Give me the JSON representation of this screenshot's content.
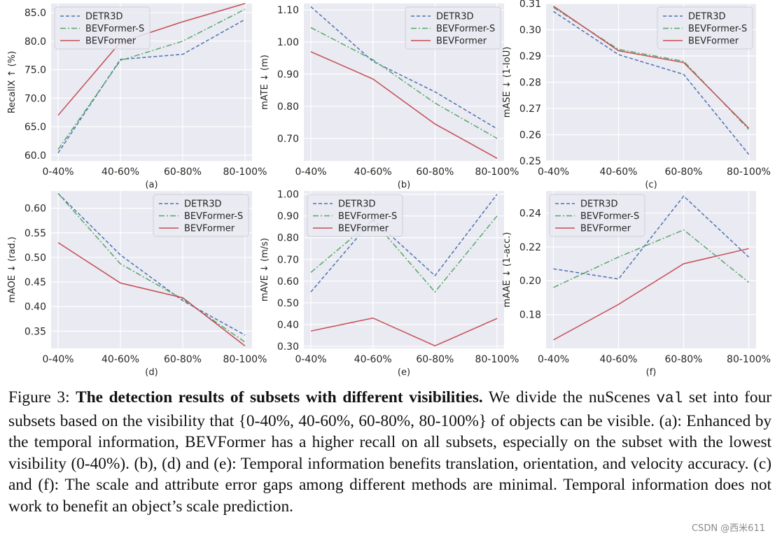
{
  "colors": {
    "DETR3D": "#4c72b0",
    "BEVFormer-S": "#55a868",
    "BEVFormer": "#c44e52",
    "plot_bg": "#eaeaf2",
    "grid": "#ffffff"
  },
  "chart_data": [
    {
      "type": "line",
      "label": "(a)",
      "ylabel": "RecallX ↑ (%)",
      "categories": [
        "0-40%",
        "40-60%",
        "60-80%",
        "80-100%"
      ],
      "ylim": [
        59.0,
        86.6
      ],
      "yticks": [
        60.0,
        65.0,
        70.0,
        75.0,
        80.0,
        85.0
      ],
      "ytick_labels": [
        "60.0",
        "65.0",
        "70.0",
        "75.0",
        "80.0",
        "85.0"
      ],
      "legend": "top-left",
      "series": [
        {
          "name": "DETR3D",
          "values": [
            60.4,
            76.8,
            77.7,
            83.8
          ]
        },
        {
          "name": "BEVFormer-S",
          "values": [
            61.0,
            76.6,
            80.0,
            85.6
          ]
        },
        {
          "name": "BEVFormer",
          "values": [
            67.0,
            79.8,
            83.4,
            86.6
          ]
        }
      ]
    },
    {
      "type": "line",
      "label": "(b)",
      "ylabel": "mATE ↓ (m)",
      "categories": [
        "0-40%",
        "40-60%",
        "60-80%",
        "80-100%"
      ],
      "ylim": [
        0.63,
        1.12
      ],
      "yticks": [
        0.7,
        0.8,
        0.9,
        1.0,
        1.1
      ],
      "ytick_labels": [
        "0.70",
        "0.80",
        "0.90",
        "1.00",
        "1.10"
      ],
      "legend": "top-right",
      "series": [
        {
          "name": "DETR3D",
          "values": [
            1.11,
            0.94,
            0.845,
            0.73
          ]
        },
        {
          "name": "BEVFormer-S",
          "values": [
            1.045,
            0.945,
            0.81,
            0.7
          ]
        },
        {
          "name": "BEVFormer",
          "values": [
            0.97,
            0.885,
            0.745,
            0.638
          ]
        }
      ]
    },
    {
      "type": "line",
      "label": "(c)",
      "ylabel": "mASE ↓ (1-IoU)",
      "categories": [
        "0-40%",
        "40-60%",
        "60-80%",
        "80-100%"
      ],
      "ylim": [
        0.25,
        0.31
      ],
      "yticks": [
        0.25,
        0.26,
        0.27,
        0.28,
        0.29,
        0.3,
        0.31
      ],
      "ytick_labels": [
        "0.25",
        "0.26",
        "0.27",
        "0.28",
        "0.29",
        "0.30",
        "0.31"
      ],
      "legend": "top-right",
      "series": [
        {
          "name": "DETR3D",
          "values": [
            0.307,
            0.2905,
            0.283,
            0.2525
          ]
        },
        {
          "name": "BEVFormer-S",
          "values": [
            0.3085,
            0.2925,
            0.288,
            0.262
          ]
        },
        {
          "name": "BEVFormer",
          "values": [
            0.309,
            0.292,
            0.2875,
            0.2625
          ]
        }
      ]
    },
    {
      "type": "line",
      "label": "(d)",
      "ylabel": "mAOE ↓ (rad.)",
      "categories": [
        "0-40%",
        "40-60%",
        "60-80%",
        "80-100%"
      ],
      "ylim": [
        0.315,
        0.635
      ],
      "yticks": [
        0.35,
        0.4,
        0.45,
        0.5,
        0.55,
        0.6
      ],
      "ytick_labels": [
        "0.35",
        "0.40",
        "0.45",
        "0.50",
        "0.55",
        "0.60"
      ],
      "legend": "top-right",
      "series": [
        {
          "name": "DETR3D",
          "values": [
            0.63,
            0.505,
            0.412,
            0.342
          ]
        },
        {
          "name": "BEVFormer-S",
          "values": [
            0.63,
            0.487,
            0.415,
            0.328
          ]
        },
        {
          "name": "BEVFormer",
          "values": [
            0.53,
            0.448,
            0.418,
            0.32
          ]
        }
      ]
    },
    {
      "type": "line",
      "label": "(e)",
      "ylabel": "mAVE ↓ (m/s)",
      "categories": [
        "0-40%",
        "40-60%",
        "60-80%",
        "80-100%"
      ],
      "ylim": [
        0.29,
        1.015
      ],
      "yticks": [
        0.3,
        0.4,
        0.5,
        0.6,
        0.7,
        0.8,
        0.9,
        1.0
      ],
      "ytick_labels": [
        "0.30",
        "0.40",
        "0.50",
        "0.60",
        "0.70",
        "0.80",
        "0.90",
        "1.00"
      ],
      "legend": "top-left",
      "series": [
        {
          "name": "DETR3D",
          "values": [
            0.55,
            0.885,
            0.625,
            1.0
          ]
        },
        {
          "name": "BEVFormer-S",
          "values": [
            0.64,
            0.88,
            0.55,
            0.9
          ]
        },
        {
          "name": "BEVFormer",
          "values": [
            0.37,
            0.43,
            0.302,
            0.428
          ]
        }
      ]
    },
    {
      "type": "line",
      "label": "(f)",
      "ylabel": "mAAE ↓ (1-acc.)",
      "categories": [
        "0-40%",
        "40-60%",
        "60-80%",
        "80-100%"
      ],
      "ylim": [
        0.16,
        0.253
      ],
      "yticks": [
        0.18,
        0.2,
        0.22,
        0.24
      ],
      "ytick_labels": [
        "0.18",
        "0.20",
        "0.22",
        "0.24"
      ],
      "legend": "top-left",
      "series": [
        {
          "name": "DETR3D",
          "values": [
            0.207,
            0.201,
            0.25,
            0.214
          ]
        },
        {
          "name": "BEVFormer-S",
          "values": [
            0.196,
            0.214,
            0.23,
            0.199
          ]
        },
        {
          "name": "BEVFormer",
          "values": [
            0.165,
            0.186,
            0.21,
            0.219
          ]
        }
      ]
    }
  ],
  "caption": {
    "prefix": "Figure 3: ",
    "bold": "The detection results of subsets with different visibilities.",
    "text1": " We divide the nuScenes ",
    "code": "val",
    "text2": " set into four subsets based on the visibility that {0-40%, 40-60%, 60-80%, 80-100%} of objects can be visible. (a): Enhanced by the temporal information, BEVFormer has a higher recall on all subsets, especially on the subset with the lowest visibility (0-40%). (b), (d) and (e): Temporal information benefits translation, orientation, and velocity accuracy. (c) and (f): The scale and attribute error gaps among different methods are minimal. Temporal information does not work to benefit an object’s scale prediction."
  },
  "watermark": "CSDN @西米611"
}
